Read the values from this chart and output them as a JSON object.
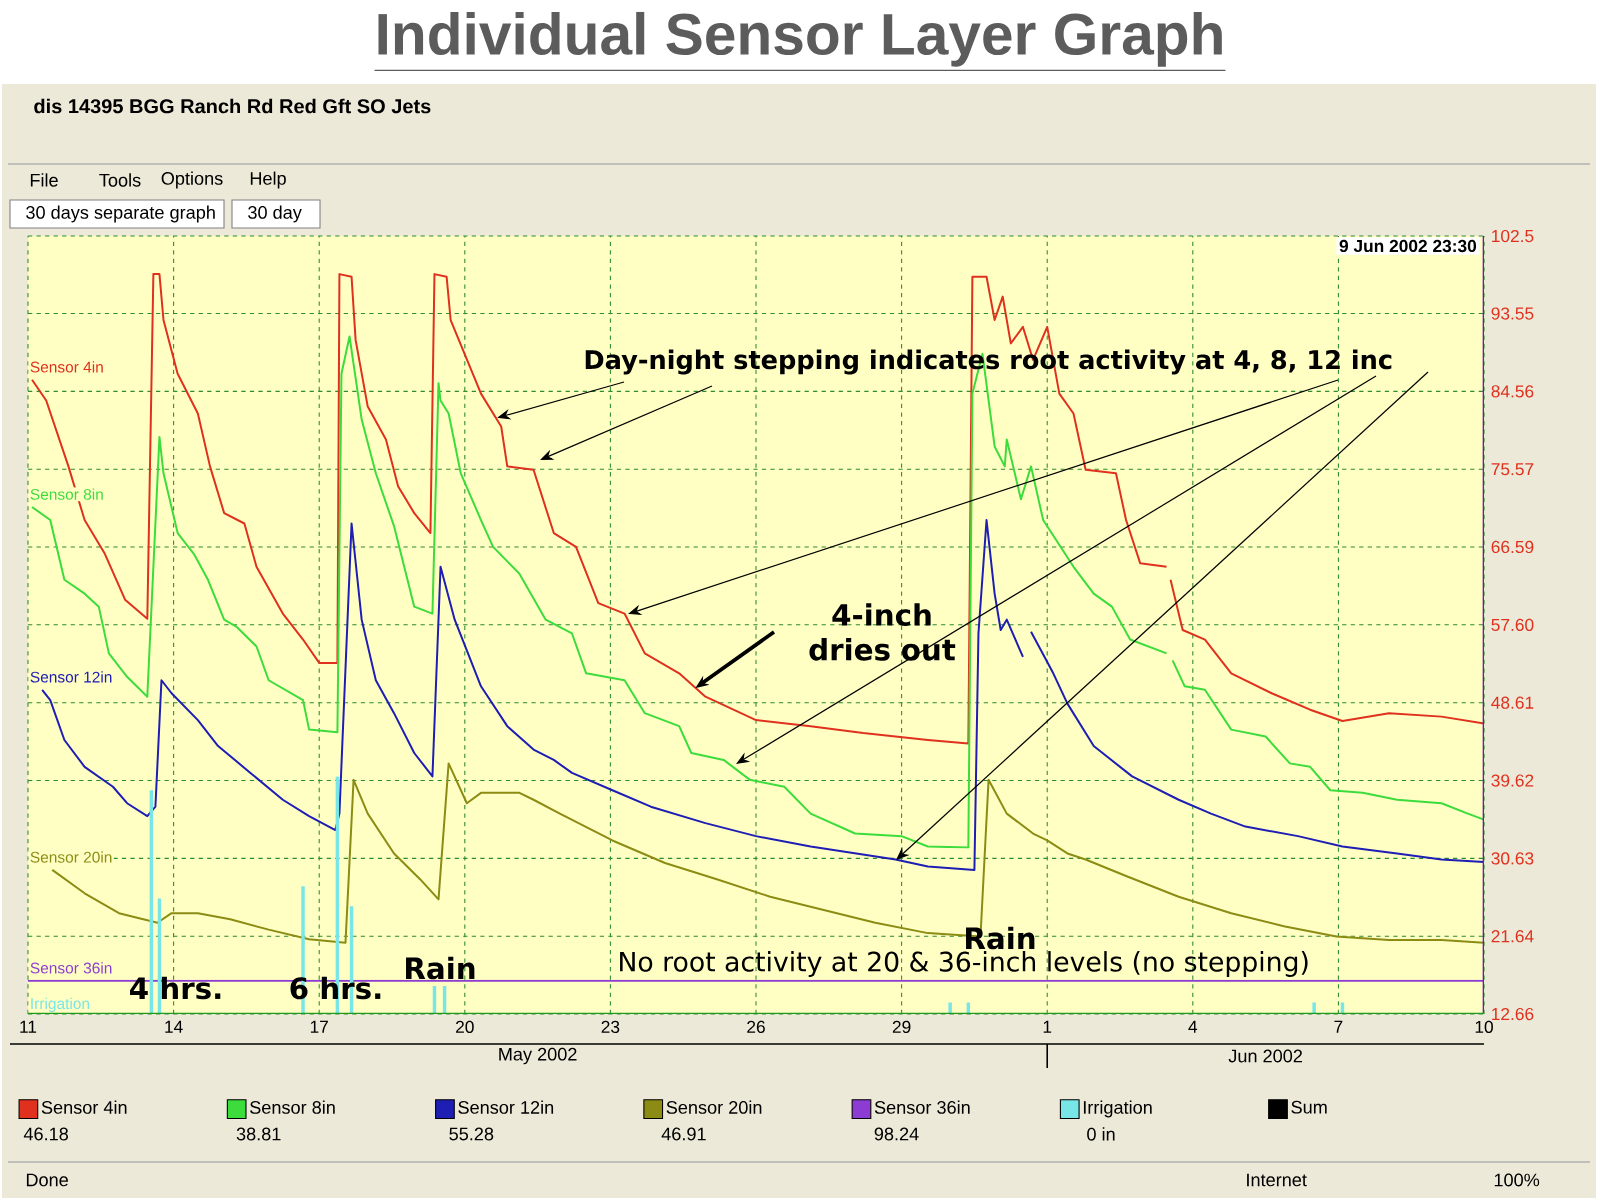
{
  "chart_data": {
    "type": "line",
    "title": "Individual Sensor Layer Graph",
    "subtitle": "dis 14395 BGG Ranch Rd Red Gft SO Jets",
    "xlim": [
      "2002-05-11",
      "2002-06-10"
    ],
    "xticks": [
      {
        "value": "2002-05-11",
        "label": "11"
      },
      {
        "value": "2002-05-14",
        "label": "14"
      },
      {
        "value": "2002-05-17",
        "label": "17"
      },
      {
        "value": "2002-05-20",
        "label": "20"
      },
      {
        "value": "2002-05-23",
        "label": "23"
      },
      {
        "value": "2002-05-26",
        "label": "26"
      },
      {
        "value": "2002-05-29",
        "label": "29"
      },
      {
        "value": "2002-06-01",
        "label": "1"
      },
      {
        "value": "2002-06-04",
        "label": "4"
      },
      {
        "value": "2002-06-07",
        "label": "7"
      },
      {
        "value": "2002-06-10",
        "label": "10"
      }
    ],
    "ylim": [
      12.66,
      102.5
    ],
    "yticks": [
      12.66,
      21.64,
      30.63,
      39.62,
      48.61,
      {
        "value": 57.6,
        "label": "57.60"
      },
      66.59,
      75.57,
      84.56,
      93.55,
      102.5
    ],
    "grid": true,
    "legend": "bottom",
    "series": [
      {
        "name": "Sensor 4in",
        "color": "#e0301e",
        "x": [
          "2002-05-11T02:00",
          "2002-05-11T09:00",
          "2002-05-11T20:00",
          "2002-05-12T04:00",
          "2002-05-12T14:00",
          "2002-05-13T00:00",
          "2002-05-13T11:00",
          "2002-05-13T14:00",
          "2002-05-13T17:00",
          "2002-05-13T19:00",
          "2002-05-14T02:00",
          "2002-05-14T12:00",
          "2002-05-14T18:00",
          "2002-05-15T01:00",
          "2002-05-15T11:00",
          "2002-05-15T17:00",
          "2002-05-16T06:00",
          "2002-05-16T16:00",
          "2002-05-17T00:00",
          "2002-05-17T09:00",
          "2002-05-17T10:00",
          "2002-05-17T16:00",
          "2002-05-17T18:00",
          "2002-05-18T00:00",
          "2002-05-18T09:00",
          "2002-05-18T15:00",
          "2002-05-18T23:00",
          "2002-05-19T07:00",
          "2002-05-19T09:00",
          "2002-05-19T15:00",
          "2002-05-19T17:00",
          "2002-05-20T08:00",
          "2002-05-20T18:00",
          "2002-05-20T21:00",
          "2002-05-21T10:00",
          "2002-05-21T20:00",
          "2002-05-22T07:00",
          "2002-05-22T18:00",
          "2002-05-23T07:00",
          "2002-05-23T17:00",
          "2002-05-24T10:00",
          "2002-05-24T23:00",
          "2002-05-26T00:00",
          "2002-05-27T03:00",
          "2002-05-28T05:00",
          "2002-05-29T13:00",
          "2002-05-30T09:00",
          "2002-05-30T11:00",
          "2002-05-30T18:00",
          "2002-05-30T22:00",
          "2002-05-31T02:00",
          "2002-05-31T06:00",
          "2002-05-31T12:00",
          "2002-05-31T17:00",
          "2002-06-01T00:00",
          "2002-06-01T06:00",
          "2002-06-01T13:00",
          "2002-06-01T19:00",
          "2002-06-02T10:00",
          "2002-06-02T15:00",
          "2002-06-02T22:00",
          "2002-06-03T11:00",
          "2002-06-03T12:00",
          "2002-06-03T13:00",
          "2002-06-03T19:00",
          "2002-06-04T06:00",
          "2002-06-04T19:00",
          "2002-06-05T15:00",
          "2002-06-06T10:00",
          "2002-06-07T02:00",
          "2002-06-08T01:00",
          "2002-06-09T03:00",
          "2002-06-10T00:00"
        ],
        "values": [
          85.9,
          83.5,
          75.9,
          69.7,
          65.8,
          60.5,
          58.3,
          98.1,
          98.1,
          92.8,
          86.6,
          82.0,
          75.9,
          70.5,
          69.3,
          64.3,
          58.9,
          55.9,
          53.2,
          53.2,
          98.1,
          97.8,
          90.5,
          82.8,
          79.0,
          73.6,
          70.5,
          68.2,
          98.1,
          97.8,
          92.8,
          84.3,
          80.5,
          75.9,
          75.5,
          68.2,
          66.6,
          60.1,
          58.9,
          54.3,
          52.0,
          49.3,
          46.6,
          45.9,
          45.1,
          44.3,
          43.9,
          97.8,
          97.8,
          92.8,
          95.5,
          90.1,
          92.0,
          88.2,
          92.0,
          84.3,
          82.0,
          75.5,
          75.1,
          69.7,
          64.7,
          64.3,
          null,
          62.8,
          57.0,
          55.9,
          52.0,
          49.7,
          47.8,
          46.5,
          47.4,
          47.0,
          46.2
        ]
      },
      {
        "name": "Sensor 8in",
        "color": "#3cdc3c",
        "x": [
          "2002-05-11T02:00",
          "2002-05-11T11:00",
          "2002-05-11T18:00",
          "2002-05-12T04:00",
          "2002-05-12T11:00",
          "2002-05-12T16:00",
          "2002-05-13T01:00",
          "2002-05-13T11:00",
          "2002-05-13T17:00",
          "2002-05-13T19:00",
          "2002-05-14T02:00",
          "2002-05-14T10:00",
          "2002-05-14T17:00",
          "2002-05-15T01:00",
          "2002-05-15T07:00",
          "2002-05-15T17:00",
          "2002-05-15T23:00",
          "2002-05-16T16:00",
          "2002-05-16T19:00",
          "2002-05-17T09:00",
          "2002-05-17T11:00",
          "2002-05-17T15:00",
          "2002-05-17T21:00",
          "2002-05-18T04:00",
          "2002-05-18T13:00",
          "2002-05-18T23:00",
          "2002-05-19T08:00",
          "2002-05-19T11:00",
          "2002-05-19T12:00",
          "2002-05-19T16:00",
          "2002-05-19T22:00",
          "2002-05-20T08:00",
          "2002-05-20T14:00",
          "2002-05-21T03:00",
          "2002-05-21T16:00",
          "2002-05-22T05:00",
          "2002-05-22T12:00",
          "2002-05-23T07:00",
          "2002-05-23T17:00",
          "2002-05-24T10:00",
          "2002-05-24T16:00",
          "2002-05-25T08:00",
          "2002-05-25T21:00",
          "2002-05-26T14:00",
          "2002-05-27T03:00",
          "2002-05-28T01:00",
          "2002-05-29T00:00",
          "2002-05-29T13:00",
          "2002-05-30T09:00",
          "2002-05-30T11:00",
          "2002-05-30T16:00",
          "2002-05-30T22:00",
          "2002-05-31T03:00",
          "2002-05-31T04:00",
          "2002-05-31T11:00",
          "2002-05-31T16:00",
          "2002-05-31T22:00",
          "2002-06-01T13:00",
          "2002-06-01T23:00",
          "2002-06-02T08:00",
          "2002-06-02T17:00",
          "2002-06-03T11:00",
          "2002-06-03T12:00",
          "2002-06-03T14:00",
          "2002-06-03T20:00",
          "2002-06-04T06:00",
          "2002-06-04T19:00",
          "2002-06-05T12:00",
          "2002-06-06T00:00",
          "2002-06-06T10:00",
          "2002-06-06T20:00",
          "2002-06-07T12:00",
          "2002-06-08T05:00",
          "2002-06-09T03:00",
          "2002-06-09T16:00",
          "2002-06-10T00:00"
        ],
        "values": [
          71.2,
          69.7,
          62.8,
          61.2,
          59.7,
          54.3,
          51.6,
          49.3,
          79.3,
          75.1,
          68.2,
          65.8,
          62.8,
          58.2,
          57.4,
          55.1,
          51.2,
          48.9,
          45.5,
          45.2,
          86.6,
          90.9,
          81.3,
          75.1,
          69.0,
          59.7,
          58.9,
          85.5,
          83.5,
          82.0,
          75.1,
          69.7,
          66.6,
          63.5,
          58.2,
          56.6,
          52.0,
          51.2,
          47.4,
          45.9,
          42.8,
          42.0,
          39.7,
          38.9,
          35.8,
          33.5,
          33.2,
          32.0,
          31.9,
          84.3,
          88.9,
          78.2,
          75.9,
          79.0,
          72.1,
          75.9,
          69.7,
          64.3,
          61.2,
          59.7,
          55.9,
          54.3,
          null,
          53.5,
          50.5,
          50.1,
          45.5,
          44.7,
          41.6,
          41.2,
          38.5,
          38.2,
          37.4,
          37.0,
          35.8,
          35.1
        ]
      },
      {
        "name": "Sensor 12in",
        "color": "#1e1eb4",
        "x": [
          "2002-05-11T07:00",
          "2002-05-11T11:00",
          "2002-05-11T18:00",
          "2002-05-12T04:00",
          "2002-05-12T18:00",
          "2002-05-13T01:00",
          "2002-05-13T11:00",
          "2002-05-13T15:00",
          "2002-05-13T18:00",
          "2002-05-13T23:00",
          "2002-05-14T12:00",
          "2002-05-14T22:00",
          "2002-05-15T14:00",
          "2002-05-16T06:00",
          "2002-05-16T19:00",
          "2002-05-17T08:00",
          "2002-05-17T10:00",
          "2002-05-17T16:00",
          "2002-05-17T21:00",
          "2002-05-18T04:00",
          "2002-05-18T13:00",
          "2002-05-18T23:00",
          "2002-05-19T08:00",
          "2002-05-19T12:00",
          "2002-05-19T19:00",
          "2002-05-20T08:00",
          "2002-05-20T21:00",
          "2002-05-21T10:00",
          "2002-05-21T20:00",
          "2002-05-22T05:00",
          "2002-05-23T01:00",
          "2002-05-23T20:00",
          "2002-05-24T23:00",
          "2002-05-26T00:00",
          "2002-05-27T03:00",
          "2002-05-28T21:00",
          "2002-05-29T13:00",
          "2002-05-30T12:00",
          "2002-05-30T14:00",
          "2002-05-30T18:00",
          "2002-05-30T22:00",
          "2002-05-31T01:00",
          "2002-05-31T04:00",
          "2002-05-31T12:00",
          "2002-05-31T14:00",
          "2002-05-31T16:00",
          "2002-06-01T03:00",
          "2002-06-01T10:00",
          "2002-06-01T23:00",
          "2002-06-02T18:00",
          "2002-06-03T17:00",
          "2002-06-04T09:00",
          "2002-06-05T02:00",
          "2002-06-06T04:00",
          "2002-06-07T02:00",
          "2002-06-08T05:00",
          "2002-06-09T03:00",
          "2002-06-10T00:00"
        ],
        "values": [
          50.1,
          48.9,
          44.3,
          41.2,
          38.9,
          37.0,
          35.5,
          36.6,
          51.2,
          49.7,
          46.6,
          43.6,
          40.5,
          37.4,
          35.5,
          33.9,
          35.8,
          69.3,
          58.2,
          51.2,
          47.4,
          42.8,
          40.1,
          64.3,
          58.2,
          50.5,
          45.9,
          43.2,
          42.0,
          40.5,
          38.5,
          36.6,
          34.7,
          33.2,
          32.0,
          30.5,
          29.7,
          29.3,
          56.6,
          69.7,
          61.2,
          57.0,
          58.2,
          53.9,
          null,
          56.8,
          52.0,
          48.5,
          43.6,
          40.1,
          37.4,
          35.8,
          34.3,
          33.2,
          32.0,
          31.2,
          30.5,
          30.2
        ]
      },
      {
        "name": "Sensor 20in",
        "color": "#8c8c14",
        "x": [
          "2002-05-11T12:00",
          "2002-05-12T04:00",
          "2002-05-12T21:00",
          "2002-05-13T16:00",
          "2002-05-13T23:00",
          "2002-05-14T12:00",
          "2002-05-15T04:00",
          "2002-05-15T23:00",
          "2002-05-16T19:00",
          "2002-05-17T13:00",
          "2002-05-17T17:00",
          "2002-05-18T00:00",
          "2002-05-18T13:00",
          "2002-05-19T02:00",
          "2002-05-19T11:00",
          "2002-05-19T16:00",
          "2002-05-20T01:00",
          "2002-05-20T08:00",
          "2002-05-21T03:00",
          "2002-05-21T10:00",
          "2002-05-21T23:00",
          "2002-05-23T01:00",
          "2002-05-24T03:00",
          "2002-05-25T05:00",
          "2002-05-26T07:00",
          "2002-05-27T09:00",
          "2002-05-28T11:00",
          "2002-05-29T13:00",
          "2002-05-30T15:00",
          "2002-05-30T19:00",
          "2002-05-31T04:00",
          "2002-05-31T17:00",
          "2002-06-01T00:00",
          "2002-06-01T10:00",
          "2002-06-01T19:00",
          "2002-06-02T15:00",
          "2002-06-03T17:00",
          "2002-06-04T19:00",
          "2002-06-05T21:00",
          "2002-06-06T23:00",
          "2002-06-08T01:00",
          "2002-06-09T03:00",
          "2002-06-10T00:00"
        ],
        "values": [
          29.3,
          26.6,
          24.3,
          23.2,
          24.3,
          24.3,
          23.6,
          22.4,
          21.3,
          20.9,
          39.7,
          35.8,
          31.2,
          28.2,
          25.9,
          41.6,
          37.0,
          38.2,
          38.2,
          37.4,
          35.8,
          32.7,
          30.1,
          28.2,
          26.2,
          24.7,
          23.2,
          22.0,
          21.6,
          39.7,
          35.8,
          33.5,
          32.7,
          31.2,
          30.5,
          28.6,
          26.2,
          24.3,
          22.8,
          21.6,
          21.2,
          21.2,
          20.9
        ]
      },
      {
        "name": "Sensor 36in",
        "color": "#8c3cd2",
        "x": [
          "2002-05-11T00:00",
          "2002-06-10T00:00"
        ],
        "values": [
          16.5,
          16.5
        ]
      },
      {
        "name": "Irrigation",
        "color": "#78e6e6",
        "type": "bar",
        "x": [
          "2002-05-13T13:00",
          "2002-05-13T17:00",
          "2002-05-16T16:00",
          "2002-05-17T09:00",
          "2002-05-17T16:00",
          "2002-05-19T09:00",
          "2002-05-19T14:00",
          "2002-05-30T00:00",
          "2002-05-30T09:00",
          "2002-06-06T12:00",
          "2002-06-07T02:00"
        ],
        "values": [
          38.5,
          26.0,
          27.4,
          40.1,
          25.1,
          15.9,
          15.9,
          14.0,
          14.0,
          14.0,
          14.0
        ]
      },
      {
        "name": "Sum",
        "color": "#000000"
      }
    ],
    "annotations": [
      {
        "text": "Day-night stepping indicates root activity at 4, 8, 12 inc",
        "x": "2002-05-20T16:00",
        "y": 81.5
      },
      {
        "text": "4-inch dries out",
        "x": "2002-05-24T18:00",
        "y": 50.3
      },
      "Rain",
      "Rain",
      "4 hrs.",
      "6 hrs.",
      "No root activity at 20 & 36-inch levels (no stepping)",
      "9 Jun 2002 23:30",
      "May 2002",
      "Jun 2002",
      "46.18",
      "38.81",
      "55.28",
      "46.91",
      "98.24",
      "0 in",
      "File",
      "Tools",
      "Options",
      "Help",
      "30 days separate graph",
      "30 day",
      "Done",
      "Internet",
      "100%"
    ]
  }
}
